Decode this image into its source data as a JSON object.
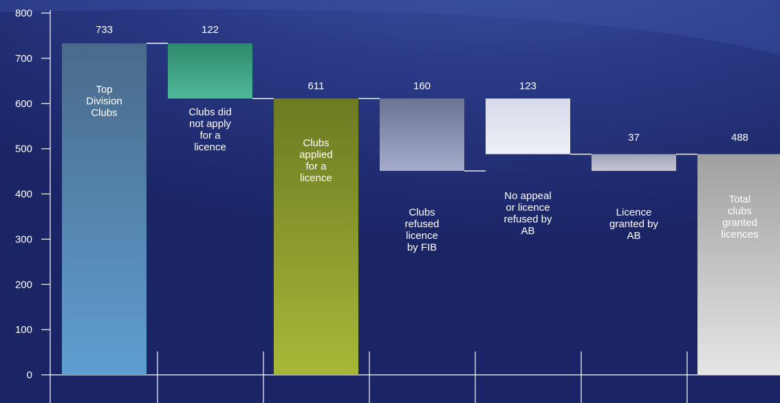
{
  "chart_data": {
    "type": "bar",
    "subtype": "waterfall",
    "title": "",
    "xlabel": "",
    "ylabel": "",
    "ylim": [
      0,
      800
    ],
    "yticks": [
      0,
      100,
      200,
      300,
      400,
      500,
      600,
      700,
      800
    ],
    "grid": false,
    "legend": "none",
    "bars": [
      {
        "label": "Top\nDivision\nClubs",
        "value": 733,
        "base": 0,
        "top": 733,
        "kind": "total",
        "color_top": "#4a6a8a",
        "color_bottom": "#5f9ed1"
      },
      {
        "label": "Clubs did\nnot apply\nfor a\nlicence",
        "value": 122,
        "base": 611,
        "top": 733,
        "kind": "decrease",
        "color_top": "#2e8a6c",
        "color_bottom": "#4fb89a"
      },
      {
        "label": "Clubs\napplied\nfor a\nlicence",
        "value": 611,
        "base": 0,
        "top": 611,
        "kind": "total",
        "color_top": "#6e7a22",
        "color_bottom": "#a7b838"
      },
      {
        "label": "Clubs\nrefused\nlicence\nby FIB",
        "value": 160,
        "base": 451,
        "top": 611,
        "kind": "decrease",
        "color_top": "#6c7493",
        "color_bottom": "#a6abcb"
      },
      {
        "label": "No appeal\nor licence\nrefused by\nAB",
        "value": 123,
        "base": 488,
        "top": 611,
        "kind": "decrease",
        "color_top": "#d7daea",
        "color_bottom": "#eef0f7"
      },
      {
        "label": "Licence\ngranted by\nAB",
        "value": 37,
        "base": 451,
        "top": 488,
        "kind": "increase",
        "color_top": "#9ea3b8",
        "color_bottom": "#c4c7d4"
      },
      {
        "label": "Total\nclubs\ngranted\nlicences",
        "value": 488,
        "base": 0,
        "top": 488,
        "kind": "total",
        "color_top": "#a0a0a0",
        "color_bottom": "#e6e6e6"
      }
    ]
  }
}
